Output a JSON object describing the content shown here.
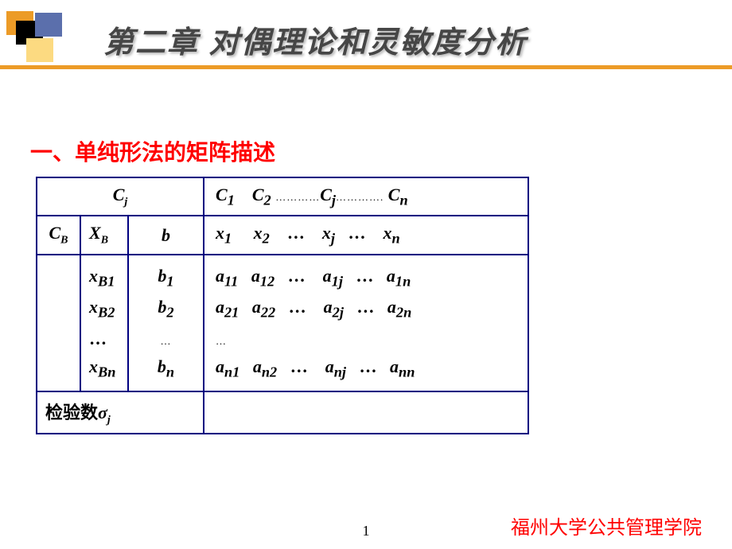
{
  "title": "第二章 对偶理论和灵敏度分析",
  "section": "一、单纯形法的矩阵描述",
  "table": {
    "cj_label": "C",
    "j_sub": "j",
    "header_row_html": "C<sub>1</sub>&nbsp;&nbsp;&nbsp;&nbsp;C<sub>2</sub> <span class='dots'>…………</span>C<sub>j</sub><span class='dots'>………….</span> C<sub>n</sub>",
    "cb": "C",
    "b_sub": "B",
    "xb": "X",
    "b_label": "b",
    "x_row_html": "x<sub>1</sub>&nbsp;&nbsp;&nbsp;&nbsp;&nbsp;x<sub>2</sub>&nbsp;&nbsp;&nbsp;&nbsp;<span class='dots2'>…</span>&nbsp;&nbsp;&nbsp;&nbsp;x<sub>j</sub>&nbsp;&nbsp;&nbsp;<span class='dots2'>…</span>&nbsp;&nbsp;&nbsp;&nbsp;x<sub>n</sub>",
    "xb_col_html": "x<sub>B1</sub><br>x<sub>B2</sub><br><span class='dots2'>…</span><br>x<sub>Bn</sub>",
    "b_col_html": "b<sub>1</sub><br>b<sub>2</sub><br><span class='dots'>…</span><br>b<sub>n</sub>",
    "a_matrix_html": "a<sub>11</sub>&nbsp;&nbsp;&nbsp;a<sub>12</sub>&nbsp;&nbsp;&nbsp;<span class='dots2'>…</span>&nbsp;&nbsp;&nbsp;&nbsp;a<sub>1j</sub>&nbsp;&nbsp;&nbsp;<span class='dots2'>…</span>&nbsp;&nbsp;&nbsp;a<sub>1n</sub><br>a<sub>21</sub>&nbsp;&nbsp;&nbsp;a<sub>22</sub>&nbsp;&nbsp;&nbsp;<span class='dots2'>…</span>&nbsp;&nbsp;&nbsp;&nbsp;a<sub>2j</sub>&nbsp;&nbsp;&nbsp;<span class='dots2'>…</span>&nbsp;&nbsp;&nbsp;a<sub>2n</sub><br><span class='dots'>…</span><br>a<sub>n1</sub>&nbsp;&nbsp;&nbsp;a<sub>n2</sub>&nbsp;&nbsp;&nbsp;<span class='dots2'>…</span>&nbsp;&nbsp;&nbsp;&nbsp;a<sub>nj</sub>&nbsp;&nbsp;&nbsp;<span class='dots2'>…</span>&nbsp;&nbsp;&nbsp;a<sub>nn</sub>",
    "test_label": "检验数",
    "sigma": "σ"
  },
  "page_number": "1",
  "footer": "福州大学公共管理学院",
  "colors": {
    "line": "#ec9b27",
    "boxA": "#ec9b27",
    "boxB": "#5b6fac",
    "boxC": "#000000",
    "boxD": "#fcda81"
  }
}
